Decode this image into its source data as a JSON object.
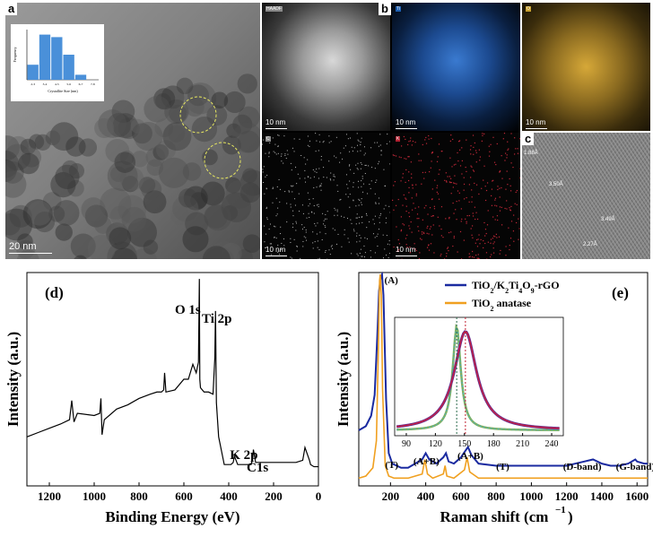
{
  "panel_a": {
    "letter": "a",
    "scale_label": "20 nm",
    "inset": {
      "categories": [
        "2-3",
        "3-4",
        "4-5",
        "5-6",
        "6-7",
        "7-8"
      ],
      "values": [
        6,
        18,
        17,
        10,
        2,
        0
      ],
      "xlabel": "Crystallite Size (nm)",
      "ylabel": "Frequency"
    }
  },
  "panel_b": {
    "letter": "b",
    "maps": [
      {
        "tag": "HAADF",
        "scale": "10 nm",
        "tag_color": "#888888"
      },
      {
        "tag": "Ti",
        "scale": "10 nm",
        "tag_color": "#1e5fb0"
      },
      {
        "tag": "O",
        "scale": "10 nm",
        "tag_color": "#c8a030"
      },
      {
        "tag": "C",
        "scale": "10 nm",
        "tag_color": "#888888"
      },
      {
        "tag": "K",
        "scale": "10 nm",
        "tag_color": "#b02030"
      }
    ]
  },
  "panel_c": {
    "letter": "c",
    "labels": [
      "1.88Å",
      "3.50Å",
      "3.49Å",
      "2.27Å"
    ]
  },
  "chart_data": [
    {
      "type": "line",
      "panel": "(d)",
      "xlabel": "Binding Energy (eV)",
      "ylabel": "Intensity (a.u.)",
      "xlim": [
        1300,
        0
      ],
      "x_ticks": [
        1200,
        1000,
        800,
        600,
        400,
        200,
        0
      ],
      "annotations": [
        "O 1s",
        "Ti 2p",
        "K 2p",
        "C1s"
      ],
      "series": [
        {
          "color": "#000000",
          "x": [
            1300,
            1250,
            1200,
            1150,
            1110,
            1100,
            1090,
            1075,
            1000,
            975,
            970,
            965,
            955,
            900,
            850,
            800,
            750,
            720,
            700,
            690,
            686,
            680,
            640,
            600,
            580,
            560,
            545,
            535,
            531,
            529,
            526,
            510,
            490,
            470,
            462,
            459,
            455,
            445,
            420,
            390,
            380,
            375,
            360,
            330,
            300,
            293,
            290,
            285,
            280,
            250,
            200,
            150,
            100,
            70,
            60,
            40,
            35,
            20,
            0
          ],
          "y": [
            0.23,
            0.25,
            0.27,
            0.29,
            0.31,
            0.4,
            0.3,
            0.34,
            0.33,
            0.34,
            0.41,
            0.24,
            0.31,
            0.36,
            0.38,
            0.41,
            0.43,
            0.44,
            0.44,
            0.45,
            0.53,
            0.44,
            0.45,
            0.5,
            0.5,
            0.57,
            0.53,
            0.58,
            0.97,
            0.5,
            0.46,
            0.44,
            0.44,
            0.43,
            0.6,
            0.82,
            0.39,
            0.23,
            0.1,
            0.1,
            0.11,
            0.14,
            0.1,
            0.1,
            0.1,
            0.13,
            0.17,
            0.14,
            0.11,
            0.11,
            0.11,
            0.11,
            0.11,
            0.12,
            0.18,
            0.12,
            0.1,
            0.09,
            0.09
          ]
        }
      ]
    },
    {
      "type": "line",
      "panel": "(e)",
      "xlabel": "Raman shift (cm",
      "xlabel_sup": "−1",
      "xlabel_end": ")",
      "ylabel": "Intensity (a.u.)",
      "xlim": [
        20,
        1660
      ],
      "x_ticks": [
        200,
        400,
        600,
        800,
        1000,
        1200,
        1400,
        1600
      ],
      "annotations": [
        "(A)",
        "(T)",
        "(A+B)",
        "(A+B)",
        "(T)",
        "(D-band)",
        "(G-band)"
      ],
      "series": [
        {
          "name": "TiO2/K2Ti4O9-rGO",
          "color": "#1a2aa0",
          "x": [
            20,
            60,
            90,
            110,
            125,
            135,
            145,
            152,
            160,
            175,
            190,
            210,
            260,
            300,
            380,
            400,
            420,
            460,
            500,
            515,
            530,
            560,
            600,
            640,
            660,
            700,
            800,
            900,
            1000,
            1100,
            1200,
            1300,
            1350,
            1400,
            1450,
            1500,
            1550,
            1590,
            1600,
            1640,
            1660
          ],
          "y": [
            0.25,
            0.27,
            0.32,
            0.42,
            0.7,
            0.92,
            0.99,
            1.0,
            0.9,
            0.4,
            0.14,
            0.09,
            0.07,
            0.07,
            0.11,
            0.14,
            0.11,
            0.09,
            0.12,
            0.14,
            0.1,
            0.09,
            0.12,
            0.17,
            0.13,
            0.09,
            0.08,
            0.08,
            0.08,
            0.08,
            0.08,
            0.1,
            0.11,
            0.09,
            0.08,
            0.08,
            0.09,
            0.11,
            0.1,
            0.09,
            0.09
          ]
        },
        {
          "name": "TiO2 anatase",
          "color": "#f0a020",
          "x": [
            20,
            60,
            100,
            120,
            130,
            138,
            142,
            148,
            155,
            170,
            190,
            220,
            300,
            380,
            395,
            410,
            440,
            500,
            510,
            520,
            560,
            620,
            635,
            650,
            700,
            800,
            1000,
            1200,
            1400,
            1600,
            1660
          ],
          "y": [
            0.02,
            0.03,
            0.07,
            0.2,
            0.6,
            0.97,
            1.0,
            0.9,
            0.45,
            0.08,
            0.03,
            0.02,
            0.02,
            0.04,
            0.11,
            0.04,
            0.02,
            0.04,
            0.08,
            0.03,
            0.02,
            0.06,
            0.12,
            0.05,
            0.02,
            0.02,
            0.02,
            0.02,
            0.02,
            0.02,
            0.02
          ]
        }
      ],
      "inset": {
        "x_ticks": [
          90,
          120,
          150,
          180,
          210,
          240
        ],
        "xlim": [
          78,
          252
        ]
      }
    }
  ],
  "legend_e": [
    {
      "text": "TiO",
      "sub": "2",
      "text2": "/K",
      "sub2": "2",
      "text3": "Ti",
      "sub3": "4",
      "text4": "O",
      "sub4": "9",
      "text5": "-rGO"
    },
    {
      "text": "TiO",
      "sub": "2",
      "text2": " anatase"
    }
  ]
}
